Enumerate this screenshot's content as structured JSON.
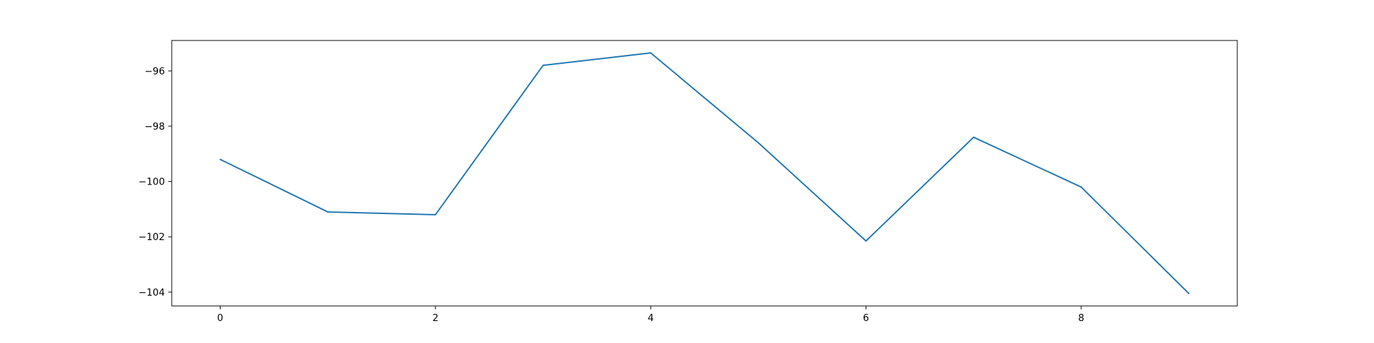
{
  "chart_data": {
    "type": "line",
    "title": "",
    "xlabel": "",
    "ylabel": "",
    "x": [
      0,
      1,
      2,
      3,
      4,
      5,
      6,
      7,
      8,
      9
    ],
    "series": [
      {
        "values": [
          -99.2,
          -101.1,
          -101.2,
          -95.8,
          -95.35,
          -98.6,
          -102.15,
          -98.4,
          -100.2,
          -104.05
        ],
        "color": "#1f77b4"
      }
    ],
    "xlim": [
      -0.45,
      9.45
    ],
    "ylim": [
      -104.5,
      -94.9
    ],
    "xticks": [
      0,
      2,
      4,
      6,
      8
    ],
    "xtick_labels": [
      "0",
      "2",
      "4",
      "6",
      "8"
    ],
    "yticks": [
      -104,
      -102,
      -100,
      -98,
      -96
    ],
    "ytick_labels": [
      "−104",
      "−102",
      "−100",
      "−98",
      "−96"
    ],
    "grid": false,
    "legend": "none"
  }
}
